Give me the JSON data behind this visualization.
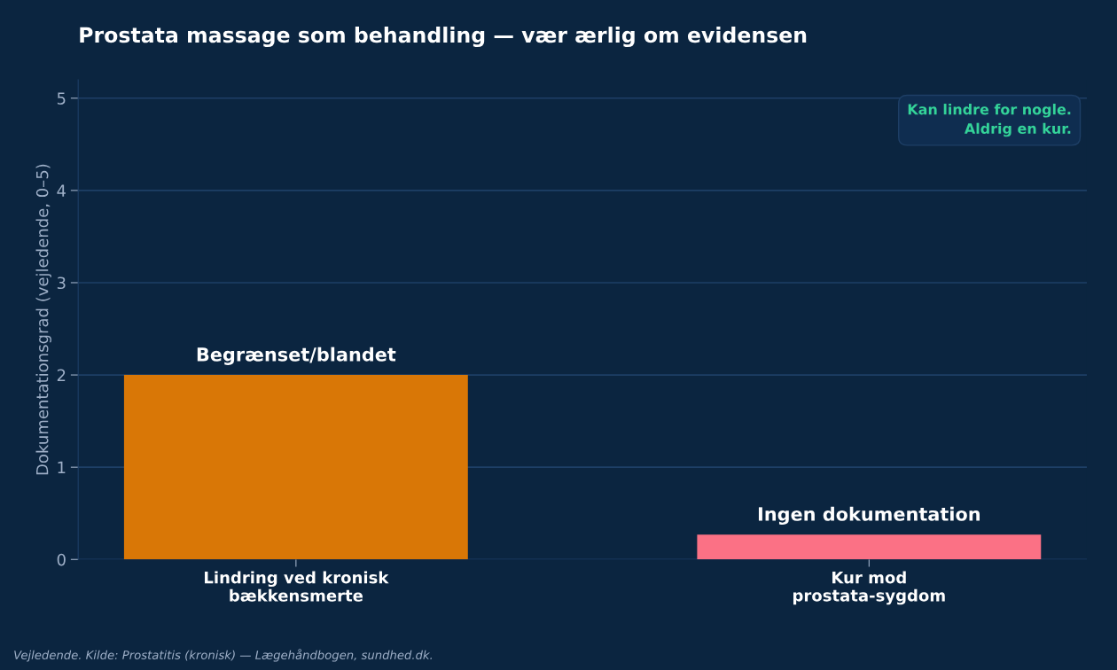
{
  "chart_data": {
    "type": "bar",
    "title": "Prostata massage som behandling — vær ærlig om evidensen",
    "ylabel": "Dokumentationsgrad (vejledende, 0–5)",
    "categories": [
      "Lindring ved kronisk\nbækkensmerte",
      "Kur mod\nprostata-sygdom"
    ],
    "values": [
      2,
      0.27
    ],
    "colors": [
      "#d97706",
      "#fb7185"
    ],
    "value_labels": [
      "Begrænset/blandet",
      "Ingen dokumentation"
    ],
    "ylim": [
      0,
      5.2
    ],
    "yticks": [
      0,
      1,
      2,
      3,
      4,
      5
    ],
    "grid": "y",
    "legend": false,
    "annotations": [
      "Kan lindre for nogle.\nAldrig en kur.",
      "Vejledende. Kilde: Prostatitis (kronisk) — Lægehåndbogen, sundhed.dk."
    ]
  }
}
